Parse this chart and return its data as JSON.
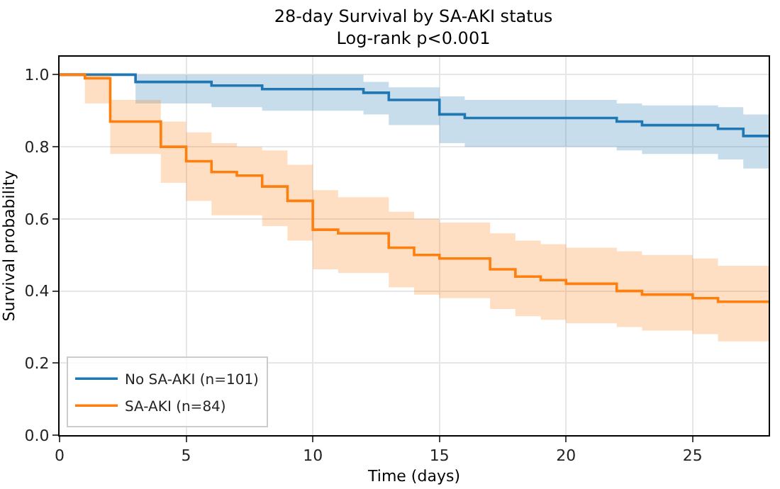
{
  "chart_data": {
    "type": "step",
    "title": "28-day Survival by SA-AKI status",
    "subtitle": "Log-rank p<0.001",
    "xlabel": "Time (days)",
    "ylabel": "Survival probability",
    "xlim": [
      0,
      28
    ],
    "xticks": [
      0,
      5,
      10,
      15,
      20,
      25
    ],
    "ylim": [
      0,
      1.05
    ],
    "yticks": [
      {
        "value": 0,
        "label": "0.0"
      },
      {
        "value": 0.2,
        "label": "0.2"
      },
      {
        "value": 0.4,
        "label": "0.4"
      },
      {
        "value": 0.6,
        "label": "0.6"
      },
      {
        "value": 0.8,
        "label": "0.8"
      },
      {
        "value": 1,
        "label": "1.0"
      }
    ],
    "grid": true,
    "legend": "bottom left",
    "marker": "none",
    "line_style": "solid",
    "series": [
      {
        "name": "No SA-AKI (n=101)",
        "color": "#1f77b4",
        "x": [
          0,
          3,
          6,
          8,
          12,
          13,
          15,
          16,
          22,
          23,
          26,
          27,
          28
        ],
        "values": [
          1,
          0.98,
          0.97,
          0.96,
          0.95,
          0.93,
          0.89,
          0.88,
          0.87,
          0.86,
          0.85,
          0.83,
          0.83
        ],
        "upper": [
          1,
          1,
          1,
          1,
          0.98,
          0.965,
          0.94,
          0.93,
          0.92,
          0.915,
          0.91,
          0.89,
          0.89
        ],
        "lower": [
          1,
          0.92,
          0.91,
          0.9,
          0.89,
          0.86,
          0.81,
          0.8,
          0.79,
          0.78,
          0.765,
          0.74,
          0.74
        ]
      },
      {
        "name": "SA-AKI (n=84)",
        "color": "#ff7f0e",
        "x": [
          0,
          1,
          2,
          4,
          5,
          6,
          7,
          8,
          9,
          10,
          11,
          13,
          14,
          15,
          17,
          18,
          19,
          20,
          22,
          23,
          25,
          26,
          28
        ],
        "values": [
          1,
          0.99,
          0.87,
          0.8,
          0.76,
          0.73,
          0.72,
          0.69,
          0.65,
          0.57,
          0.56,
          0.52,
          0.5,
          0.49,
          0.46,
          0.44,
          0.43,
          0.42,
          0.4,
          0.39,
          0.38,
          0.37,
          0.37
        ],
        "upper": [
          1,
          1,
          0.93,
          0.87,
          0.84,
          0.81,
          0.8,
          0.79,
          0.75,
          0.68,
          0.66,
          0.62,
          0.6,
          0.59,
          0.56,
          0.54,
          0.53,
          0.52,
          0.51,
          0.5,
          0.49,
          0.47,
          0.47
        ],
        "lower": [
          1,
          0.92,
          0.78,
          0.7,
          0.65,
          0.61,
          0.61,
          0.58,
          0.54,
          0.46,
          0.45,
          0.41,
          0.39,
          0.38,
          0.35,
          0.33,
          0.32,
          0.31,
          0.3,
          0.29,
          0.28,
          0.26,
          0.26
        ]
      }
    ]
  }
}
